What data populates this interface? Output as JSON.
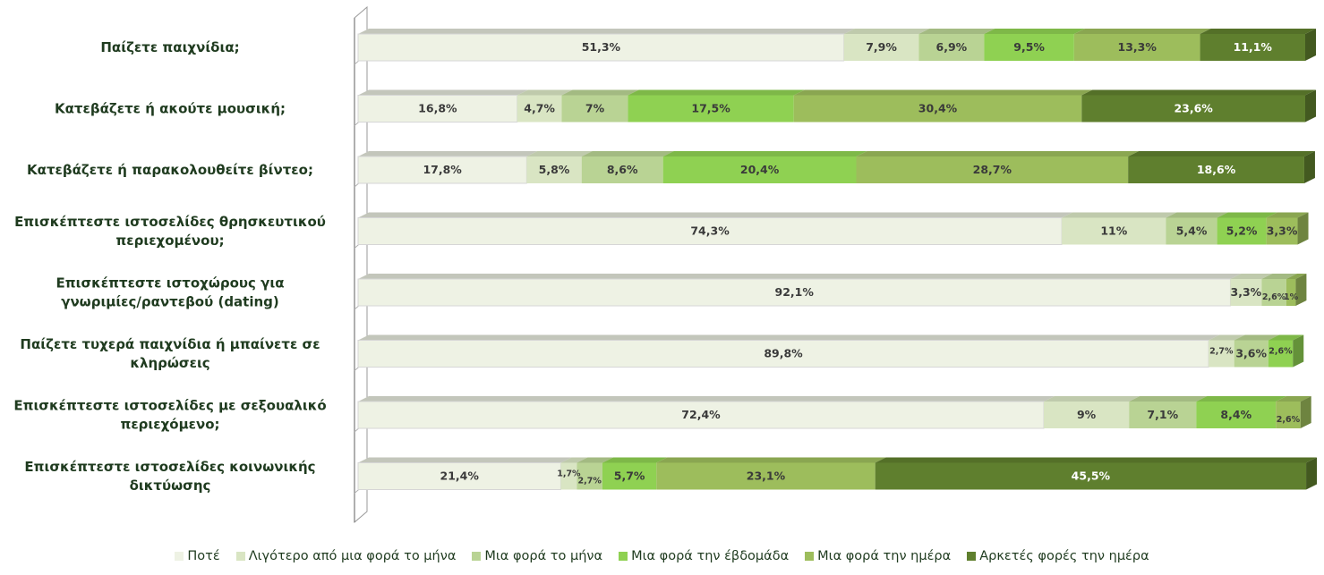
{
  "chart_data": {
    "type": "bar",
    "orientation": "horizontal",
    "stacked": true,
    "percent": true,
    "xlim": [
      0,
      100
    ],
    "legend_position": "bottom",
    "grid": false,
    "categories": [
      "Παίζετε παιχνίδια;",
      "Κατεβάζετε ή ακούτε μουσική;",
      "Κατεβάζετε ή παρακολουθείτε βίντεο;",
      "Επισκέπτεστε ιστοσελίδες θρησκευτικού περιεχομένου;",
      "Επισκέπτεστε ιστοχώρους για γνωριμίες/ραντεβού  (dating)",
      "Παίζετε τυχερά παιχνίδια ή μπαίνετε σε κληρώσεις",
      "Επισκέπτεστε ιστοσελίδες με σεξουαλικό περιεχόμενο;",
      "Επισκέπτεστε ιστοσελίδες κοινωνικής δικτύωσης"
    ],
    "category_lines": [
      [
        "Παίζετε παιχνίδια;"
      ],
      [
        "Κατεβάζετε ή ακούτε μουσική;"
      ],
      [
        "Κατεβάζετε ή παρακολουθείτε βίντεο;"
      ],
      [
        "Επισκέπτεστε ιστοσελίδες θρησκευτικού",
        "περιεχομένου;"
      ],
      [
        "Επισκέπτεστε ιστοχώρους για",
        "γνωριμίες/ραντεβού  (dating)"
      ],
      [
        "Παίζετε τυχερά παιχνίδια ή μπαίνετε σε",
        "κληρώσεις"
      ],
      [
        "Επισκέπτεστε ιστοσελίδες με σεξουαλικό",
        "περιεχόμενο;"
      ],
      [
        "Επισκέπτεστε ιστοσελίδες κοινωνικής",
        "δικτύωσης"
      ]
    ],
    "series": [
      {
        "name": "Ποτέ",
        "color": "#eef2e4",
        "values": [
          51.3,
          16.8,
          17.8,
          74.3,
          92.1,
          89.8,
          72.4,
          21.4
        ],
        "labels": [
          "51,3%",
          "16,8%",
          "17,8%",
          "74,3%",
          "92,1%",
          "89,8%",
          "72,4%",
          "21,4%"
        ]
      },
      {
        "name": "Λιγότερο από μια φορά το μήνα",
        "color": "#d9e5c3",
        "values": [
          7.9,
          4.7,
          5.8,
          11,
          3.3,
          2.7,
          9,
          1.7
        ],
        "labels": [
          "7,9%",
          "4,7%",
          "5,8%",
          "11%",
          "3,3%",
          "2,7%",
          "9%",
          "1,7%"
        ]
      },
      {
        "name": "Μια φορά το μήνα",
        "color": "#b9d394",
        "values": [
          6.9,
          7,
          8.6,
          5.4,
          2.6,
          3.6,
          7.1,
          2.7
        ],
        "labels": [
          "6,9%",
          "7%",
          "8,6%",
          "5,4%",
          "2,6%",
          "3,6%",
          "7,1%",
          "2,7%"
        ]
      },
      {
        "name": "Μια φορά την έβδομάδα",
        "color": "#8fd152",
        "values": [
          9.5,
          17.5,
          20.4,
          5.2,
          0,
          2.6,
          8.4,
          5.7
        ],
        "labels": [
          "9,5%",
          "17,5%",
          "20,4%",
          "5,2%",
          "",
          "2,6%",
          "8,4%",
          "5,7%"
        ]
      },
      {
        "name": "Μια φορά την ημέρα",
        "color": "#9dbd5c",
        "values": [
          13.3,
          30.4,
          28.7,
          3.3,
          1,
          0,
          2.6,
          23.1
        ],
        "labels": [
          "13,3%",
          "30,4%",
          "28,7%",
          "3,3%",
          "1%",
          "",
          "2,6%",
          "23,1%"
        ]
      },
      {
        "name": "Αρκετές φορές την ημέρα",
        "color": "#5f7f2e",
        "values": [
          11.1,
          23.6,
          18.6,
          0,
          0,
          0,
          0,
          45.5
        ],
        "labels": [
          "11,1%",
          "23,6%",
          "18,6%",
          "",
          "",
          "",
          "",
          "45,5%"
        ]
      }
    ]
  }
}
